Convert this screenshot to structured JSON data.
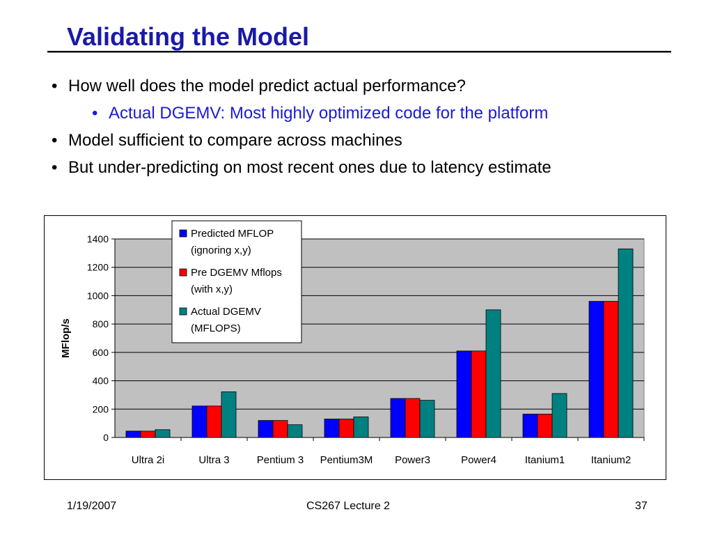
{
  "slide": {
    "title": "Validating the Model",
    "bullets": [
      "How well does the model predict actual performance?",
      "Actual DGEMV: Most highly optimized code for the platform",
      "Model sufficient to compare across machines",
      "But under-predicting on most recent ones due to latency estimate"
    ]
  },
  "footer": {
    "date": "1/19/2007",
    "course": "CS267 Lecture 2",
    "page": "37"
  },
  "chart_data": {
    "type": "bar",
    "categories": [
      "Ultra 2i",
      "Ultra 3",
      "Pentium 3",
      "Pentium3M",
      "Power3",
      "Power4",
      "Itanium1",
      "Itanium2"
    ],
    "series": [
      {
        "name": "Predicted MFLOP (ignoring x,y)",
        "color": "#0000ff",
        "values": [
          45,
          222,
          120,
          130,
          275,
          610,
          165,
          960
        ]
      },
      {
        "name": "Pre DGEMV Mflops (with x,y)",
        "color": "#ff0000",
        "values": [
          45,
          222,
          120,
          130,
          275,
          610,
          165,
          960
        ]
      },
      {
        "name": "Actual DGEMV (MFLOPS)",
        "color": "#008080",
        "values": [
          55,
          322,
          90,
          145,
          262,
          900,
          310,
          1330
        ]
      }
    ],
    "ylabel": "MFlop/s",
    "xlabel": "",
    "ylim": [
      0,
      1400
    ],
    "yticks": [
      0,
      200,
      400,
      600,
      800,
      1000,
      1200,
      1400
    ],
    "grid": true,
    "plot_background": "#c0c0c0",
    "legend_position": "top-center"
  }
}
